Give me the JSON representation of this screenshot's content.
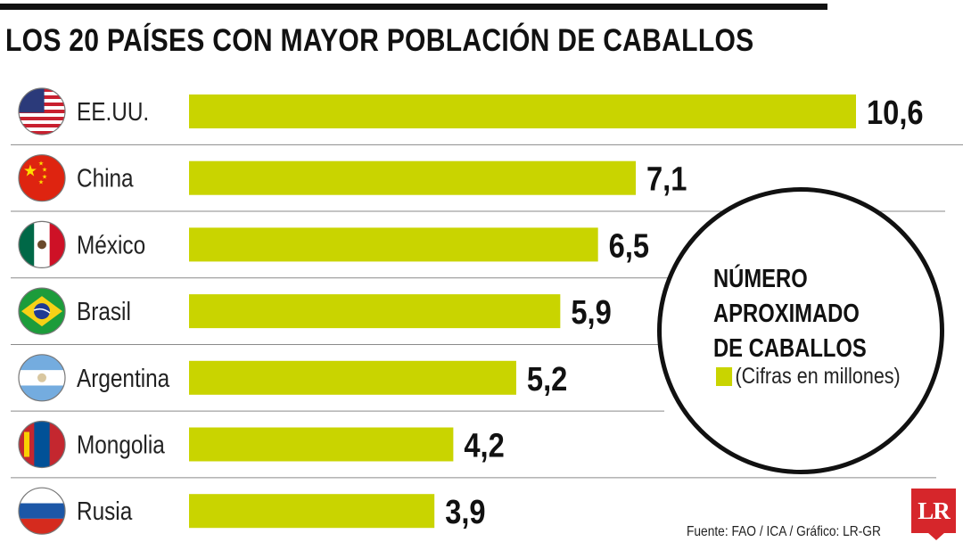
{
  "chart_data": {
    "type": "bar",
    "orientation": "horizontal",
    "title": "LOS 20 PAÍSES CON MAYOR POBLACIÓN DE CABALLOS",
    "categories": [
      "EE.UU.",
      "China",
      "México",
      "Brasil",
      "Argentina",
      "Mongolia",
      "Rusia"
    ],
    "flag_icons": [
      "usa-flag-icon",
      "china-flag-icon",
      "mexico-flag-icon",
      "brazil-flag-icon",
      "argentina-flag-icon",
      "mongolia-flag-icon",
      "russia-flag-icon"
    ],
    "values": [
      10.6,
      7.1,
      6.5,
      5.9,
      5.2,
      4.2,
      3.9
    ],
    "value_labels": [
      "10,6",
      "7,1",
      "6,5",
      "5,9",
      "5,2",
      "4,2",
      "3,9"
    ],
    "legend": {
      "heading": [
        "NÚMERO",
        "APROXIMADO",
        "DE CABALLOS"
      ],
      "entry": "(Cifras en millones)",
      "placement": "right"
    },
    "bar_color": "#c9d400",
    "grid": false
  },
  "source": "Fuente: FAO / ICA / Gráfico: LR-GR",
  "logo_text": "LR",
  "colors": {
    "bar": "#c9d400",
    "logo": "#d6262b",
    "text": "#111111"
  }
}
